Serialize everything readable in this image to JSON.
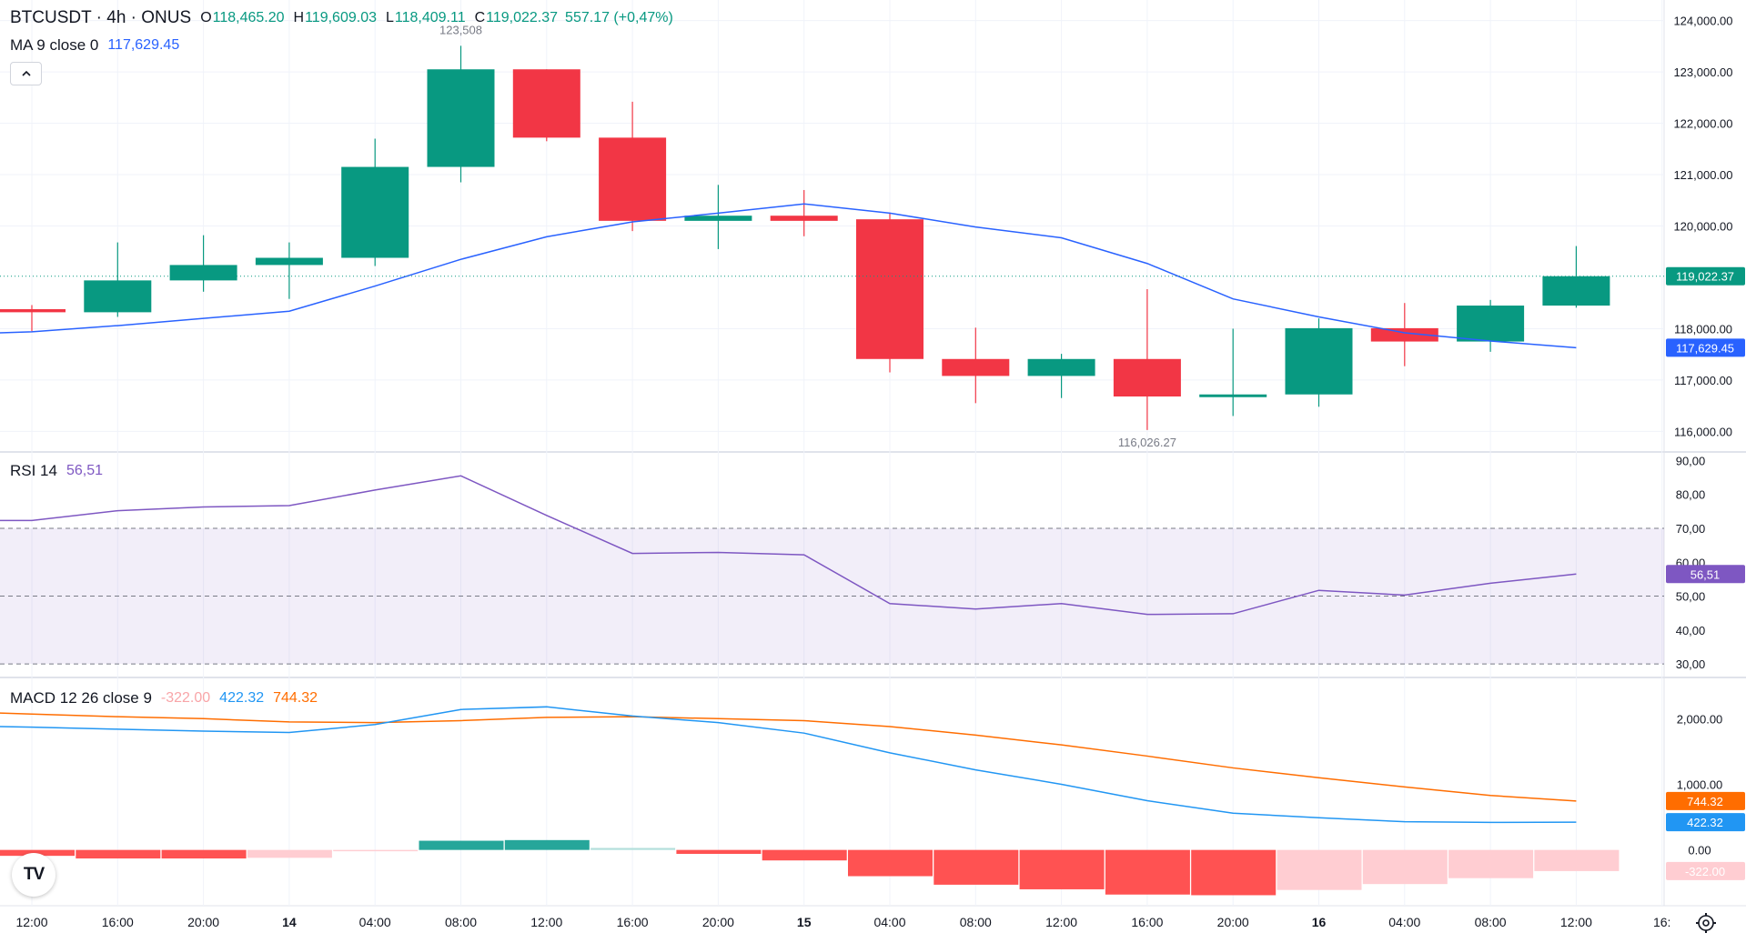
{
  "header": {
    "symbol": "BTCUSDT · 4h · ONUS",
    "open_key": "O",
    "open": "118,465.20",
    "high_key": "H",
    "high": "119,609.03",
    "low_key": "L",
    "low": "118,409.11",
    "close_key": "C",
    "close": "119,022.37",
    "change": "557.17 (+0,47%)"
  },
  "ma_legend": {
    "name": "MA 9 close 0",
    "value": "117,629.45"
  },
  "rsi_legend": {
    "name": "RSI 14",
    "value": "56,51"
  },
  "macd_legend": {
    "name": "MACD 12 26 close 9",
    "hist": "-322.00",
    "macd": "422.32",
    "signal": "744.32"
  },
  "collapse_icon": "chevron-up-icon",
  "logo_text": "TV",
  "colors": {
    "up": "#089981",
    "down": "#f23645",
    "ma": "#2962ff",
    "rsi": "#7e57c2",
    "macd": "#2196f3",
    "signal": "#ff6d00"
  },
  "chart_data": [
    {
      "type": "candlestick",
      "title": "BTCUSDT · 4h · ONUS",
      "x": [
        "12:00",
        "16:00",
        "20:00",
        "14",
        "04:00",
        "08:00",
        "12:00",
        "16:00",
        "20:00",
        "15",
        "04:00",
        "08:00",
        "12:00",
        "16:00",
        "20:00",
        "16",
        "04:00",
        "08:00",
        "12:00"
      ],
      "x_axis_labels": [
        "12:00",
        "16:00",
        "20:00",
        "14",
        "04:00",
        "08:00",
        "12:00",
        "16:00",
        "20:00",
        "15",
        "04:00",
        "08:00",
        "12:00",
        "16:00",
        "20:00",
        "16",
        "04:00",
        "08:00",
        "12:00",
        "16:"
      ],
      "candles": [
        {
          "o": 118380,
          "h": 118460,
          "l": 117950,
          "c": 118320
        },
        {
          "o": 118320,
          "h": 119680,
          "l": 118230,
          "c": 118940
        },
        {
          "o": 118940,
          "h": 119820,
          "l": 118720,
          "c": 119240
        },
        {
          "o": 119240,
          "h": 119680,
          "l": 118580,
          "c": 119380
        },
        {
          "o": 119380,
          "h": 121700,
          "l": 119220,
          "c": 121150
        },
        {
          "o": 121150,
          "h": 123508,
          "l": 120850,
          "c": 123050
        },
        {
          "o": 123050,
          "h": 123050,
          "l": 121650,
          "c": 121720
        },
        {
          "o": 121720,
          "h": 122420,
          "l": 119900,
          "c": 120100
        },
        {
          "o": 120100,
          "h": 120800,
          "l": 119550,
          "c": 120200
        },
        {
          "o": 120200,
          "h": 120700,
          "l": 119800,
          "c": 120100
        },
        {
          "o": 120130,
          "h": 120260,
          "l": 117150,
          "c": 117410
        },
        {
          "o": 117410,
          "h": 118020,
          "l": 116550,
          "c": 117080
        },
        {
          "o": 117080,
          "h": 117510,
          "l": 116650,
          "c": 117410
        },
        {
          "o": 117410,
          "h": 118770,
          "l": 116026.27,
          "c": 116680
        },
        {
          "o": 116680,
          "h": 118000,
          "l": 116300,
          "c": 116720
        },
        {
          "o": 116720,
          "h": 118200,
          "l": 116480,
          "c": 118010
        },
        {
          "o": 118010,
          "h": 118500,
          "l": 117270,
          "c": 117750
        },
        {
          "o": 117750,
          "h": 118560,
          "l": 117550,
          "c": 118450
        },
        {
          "o": 118450,
          "h": 119609.03,
          "l": 118409.11,
          "c": 119022.37
        }
      ],
      "ma9": [
        117940,
        118060,
        118200,
        118340,
        118830,
        119350,
        119790,
        120080,
        120250,
        120430,
        120250,
        119980,
        119770,
        119270,
        118580,
        118230,
        117920,
        117760,
        117629.45
      ],
      "y_ticks": [
        "124,000.00",
        "123,000.00",
        "122,000.00",
        "121,000.00",
        "120,000.00",
        "118,000.00",
        "117,000.00",
        "116,000.00"
      ],
      "ylim": [
        115600,
        124400
      ],
      "high_annotation": "123,508",
      "low_annotation": "116,026.27",
      "last_price_label": "119,022.37",
      "ma_label": "117,629.45"
    },
    {
      "type": "line",
      "title": "RSI 14",
      "values": [
        72.3,
        75.2,
        76.3,
        76.7,
        81.3,
        85.5,
        73.8,
        62.6,
        62.9,
        62.2,
        47.8,
        46.2,
        47.8,
        44.6,
        44.8,
        51.7,
        50.3,
        53.8,
        56.51
      ],
      "band": [
        30,
        70
      ],
      "midline": 50,
      "y_ticks": [
        "90,00",
        "80,00",
        "70,00",
        "60,00",
        "50,00",
        "40,00",
        "30,00"
      ],
      "ylim": [
        26,
        92
      ],
      "last_label": "56,51"
    },
    {
      "type": "bar+line",
      "title": "MACD 12 26 close 9",
      "macd": [
        1870,
        1840,
        1810,
        1790,
        1910,
        2140,
        2180,
        2040,
        1940,
        1780,
        1480,
        1220,
        1000,
        750,
        560,
        490,
        430,
        420,
        422.32
      ],
      "signal": [
        2070,
        2030,
        2000,
        1950,
        1940,
        1970,
        2020,
        2030,
        2000,
        1970,
        1880,
        1750,
        1600,
        1430,
        1250,
        1100,
        960,
        830,
        744.32
      ],
      "histogram": [
        -90,
        -130,
        -130,
        -120,
        -20,
        140,
        150,
        30,
        -60,
        -160,
        -400,
        -530,
        -600,
        -680,
        -690,
        -610,
        -520,
        -430,
        -322.0
      ],
      "y_ticks": [
        "2,000.00",
        "1,000.00",
        "0.00"
      ],
      "ylim": [
        -850,
        2600
      ],
      "labels": {
        "signal": "744.32",
        "macd": "422.32",
        "hist": "-322.00"
      }
    }
  ]
}
